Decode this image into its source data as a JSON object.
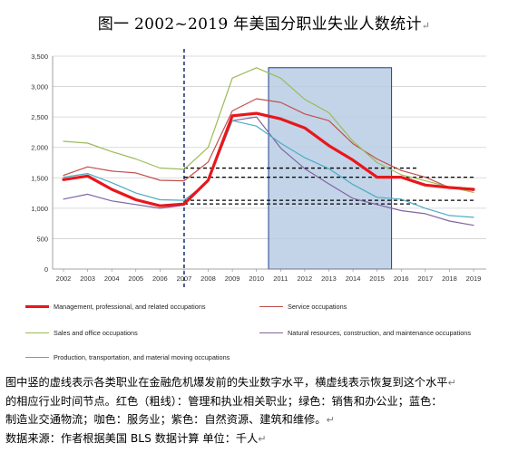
{
  "title": "图一 2002~2019 年美国分职业失业人数统计",
  "title_mark": "↵",
  "chart_data": {
    "type": "line",
    "title": "图一 2002~2019 年美国分职业失业人数统计",
    "xlabel": "",
    "ylabel": "",
    "x": [
      2002,
      2003,
      2004,
      2005,
      2006,
      2007,
      2008,
      2009,
      2010,
      2011,
      2012,
      2013,
      2014,
      2015,
      2016,
      2017,
      2018,
      2019
    ],
    "ylim": [
      0,
      3500
    ],
    "yticks": [
      0,
      500,
      1000,
      1500,
      2000,
      2500,
      3000,
      3500
    ],
    "ytick_labels": [
      "0",
      "500",
      "1,000",
      "1,500",
      "2,000",
      "2,500",
      "3,000",
      "3,500"
    ],
    "grid": "horizontal",
    "legend_position": "bottom",
    "series": [
      {
        "name": "Management, professional, and related occupations",
        "color": "#e8171b",
        "width": 3.2,
        "values": [
          1470,
          1530,
          1310,
          1140,
          1040,
          1070,
          1460,
          2520,
          2560,
          2470,
          2320,
          2030,
          1790,
          1510,
          1510,
          1380,
          1340,
          1310
        ]
      },
      {
        "name": "Service occupations",
        "color": "#c0504d",
        "width": 1.2,
        "values": [
          1540,
          1680,
          1610,
          1580,
          1460,
          1450,
          1760,
          2600,
          2800,
          2740,
          2550,
          2440,
          2060,
          1810,
          1620,
          1510,
          1340,
          1290
        ]
      },
      {
        "name": "Sales and office occupations",
        "color": "#9bbb59",
        "width": 1.2,
        "values": [
          2100,
          2070,
          1930,
          1810,
          1660,
          1640,
          2000,
          3140,
          3310,
          3140,
          2790,
          2570,
          2100,
          1750,
          1550,
          1450,
          1350,
          1260
        ]
      },
      {
        "name": "Natural resources, construction, and maintenance occupations",
        "color": "#8064a2",
        "width": 1.2,
        "values": [
          1150,
          1230,
          1120,
          1060,
          1000,
          1050,
          1470,
          2440,
          2500,
          1990,
          1650,
          1400,
          1160,
          1060,
          960,
          910,
          790,
          720
        ]
      },
      {
        "name": "Production, transportation, and material moving occupations",
        "color": "#4bacc6",
        "width": 1.2,
        "values": [
          1510,
          1570,
          1420,
          1250,
          1140,
          1130,
          1440,
          2440,
          2350,
          2070,
          1830,
          1650,
          1390,
          1180,
          1150,
          1000,
          880,
          850
        ]
      }
    ],
    "annotations": {
      "vertical_dashed_x": 2007,
      "horizontal_dashed": [
        {
          "y": 1660,
          "from": 2007,
          "to": 2016.7
        },
        {
          "y": 1510,
          "from": 2007,
          "to": 2019
        },
        {
          "y": 1130,
          "from": 2007,
          "to": 2019
        },
        {
          "y": 1070,
          "from": 2007,
          "to": 2016.7
        }
      ],
      "shaded_range": [
        2010.5,
        2015.6
      ]
    }
  },
  "caption": {
    "line1": "图中竖的虚线表示各类职业在金融危机爆发前的失业数字水平，横虚线表示恢复到这个水平",
    "line2": "的相应行业时间节点。红色（粗线）：管理和执业相关职业；绿色：销售和办公业；蓝色：",
    "line3": "制造业交通物流；咖色：服务业；紫色：自然资源、建筑和维修。",
    "line4": "数据来源：作者根据美国 BLS 数据计算 单位：千人",
    "mark": "↵"
  }
}
